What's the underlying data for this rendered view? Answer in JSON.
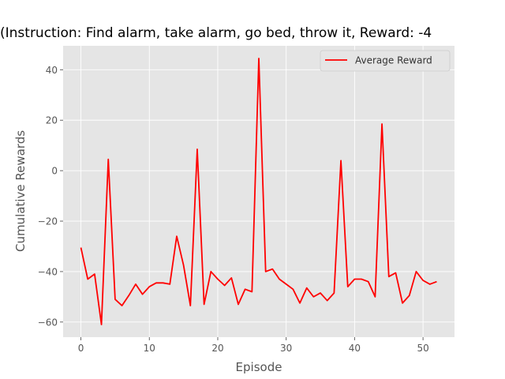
{
  "chart_data": {
    "type": "line",
    "title": "(Instruction: Find alarm, take alarm, go bed, throw it, Reward: -4",
    "xlabel": "Episode",
    "ylabel": "Cumulative Rewards",
    "xlim": [
      -2.6,
      54.6
    ],
    "ylim": [
      -66,
      49.5
    ],
    "xticks": [
      0,
      10,
      20,
      30,
      40,
      50
    ],
    "yticks": [
      -60,
      -40,
      -20,
      0,
      20,
      40
    ],
    "grid": true,
    "legend_position": "top-right",
    "series": [
      {
        "name": "Average Reward",
        "color": "#ff0000",
        "x": [
          0,
          1,
          2,
          3,
          4,
          5,
          6,
          7,
          8,
          9,
          10,
          11,
          12,
          13,
          14,
          15,
          16,
          17,
          18,
          19,
          20,
          21,
          22,
          23,
          24,
          25,
          26,
          27,
          28,
          29,
          30,
          31,
          32,
          33,
          34,
          35,
          36,
          37,
          38,
          39,
          40,
          41,
          42,
          43,
          44,
          45,
          46,
          47,
          48,
          49,
          50,
          51,
          52
        ],
        "values": [
          -30.5,
          -43,
          -41,
          -61,
          4.5,
          -51,
          -53.5,
          -49.5,
          -45,
          -49,
          -46,
          -44.5,
          -44.5,
          -45,
          -26,
          -37.5,
          -53.5,
          8.5,
          -53,
          -40,
          -43,
          -45.5,
          -42.5,
          -53,
          -47,
          -48,
          44.5,
          -40,
          -39,
          -43,
          -45,
          -47,
          -52.5,
          -46.5,
          -50,
          -48.5,
          -51.5,
          -48.5,
          4,
          -46,
          -43,
          -43,
          -44,
          -50,
          18.5,
          -42,
          -40.5,
          -52.5,
          -49.5,
          -40,
          -43.5,
          -45,
          -44
        ]
      }
    ]
  },
  "colors": {
    "plot_background": "#e5e5e5",
    "grid": "#ffffff",
    "line": "#ff0000"
  }
}
